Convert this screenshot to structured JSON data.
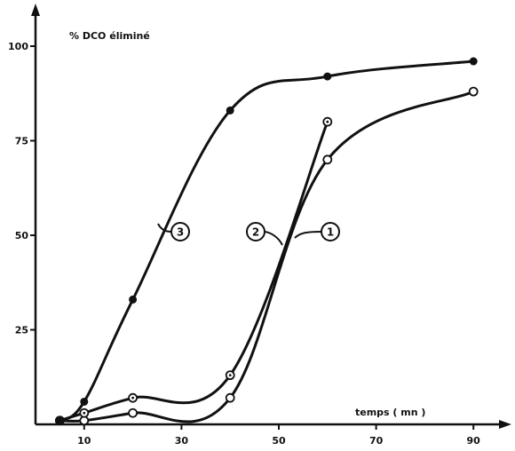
{
  "chart_data": {
    "type": "line",
    "ylabel": "%  DCO  éliminé",
    "xlabel": "temps  ( mn )",
    "xlim": [
      0,
      93
    ],
    "ylim": [
      0,
      100
    ],
    "x_ticks": [
      10,
      30,
      50,
      70,
      90
    ],
    "y_ticks": [
      {
        "value": 25,
        "label": "25"
      },
      {
        "value": 50,
        "label": "50"
      },
      {
        "value": 75,
        "label": "75"
      },
      {
        "value": 100,
        "label": "100"
      }
    ],
    "grid": false,
    "series": [
      {
        "name": "1",
        "marker": "open-circle",
        "x": [
          5,
          10,
          20,
          40,
          60,
          90
        ],
        "y": [
          1,
          1,
          3,
          7,
          70,
          88
        ]
      },
      {
        "name": "2",
        "marker": "dotted-circle",
        "x": [
          5,
          10,
          20,
          40,
          60
        ],
        "y": [
          1,
          3,
          7,
          13,
          80
        ]
      },
      {
        "name": "3",
        "marker": "filled-circle",
        "x": [
          5,
          10,
          20,
          40,
          60,
          90
        ],
        "y": [
          1,
          6,
          33,
          83,
          92,
          96
        ]
      }
    ]
  }
}
